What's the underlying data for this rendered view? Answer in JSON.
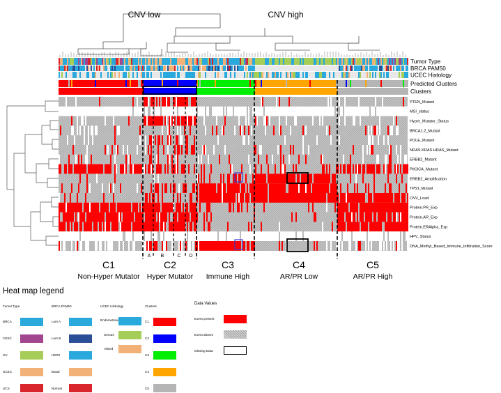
{
  "header": {
    "cnv_low": "CNV low",
    "cnv_high": "CNV high"
  },
  "tracks": [
    "Tumor Type",
    "BRCA PAM50",
    "UCEC Histology",
    "Predicted Clusters",
    "Clusters"
  ],
  "features": [
    "PTEN_Mutant",
    "MSI_status",
    "Hyper_Mutator_Status",
    "BRCA1.2_Mutant",
    "POLE_Mutant",
    "NRAS.KRAS.HRAS_Mutant",
    "ERBB2_Mutant",
    "PIK3CA_Mutant",
    "ERBB2_Amplification",
    "TP53_Mutant",
    "CNV_Load",
    "Protein.PR_Exp",
    "Protein.AR_Exp",
    "Protein.ERAlpha_Exp",
    "HPV_Status",
    "DNA_Methyl_Based_Immune_Infiltration_Score"
  ],
  "subclusters": [
    "A",
    "B",
    "C",
    "D"
  ],
  "clusters": [
    {
      "id": "C1",
      "desc": "Non-Hyper Mutator"
    },
    {
      "id": "C2",
      "desc": "Hyper Mutator"
    },
    {
      "id": "C3",
      "desc": "Immune High"
    },
    {
      "id": "C4",
      "desc": "AR/PR Low"
    },
    {
      "id": "C5",
      "desc": "AR/PR High"
    }
  ],
  "legend": {
    "title": "Heat map legend",
    "tumor_type": {
      "title": "Tumor Type",
      "items": [
        {
          "label": "BRCA",
          "color": "#29a9dc"
        },
        {
          "label": "CESC",
          "color": "#a2468f"
        },
        {
          "label": "OV",
          "color": "#a6cd57"
        },
        {
          "label": "UCEC",
          "color": "#f2b277"
        },
        {
          "label": "UCS",
          "color": "#d9262d"
        }
      ]
    },
    "pam50": {
      "title": "BRCA PAM50",
      "items": [
        {
          "label": "Lum A",
          "color": "#29a9dc"
        },
        {
          "label": "Lum B",
          "color": "#2b4f97"
        },
        {
          "label": "HER2",
          "color": "#29a9dc"
        },
        {
          "label": "Basal",
          "color": "#f2b277"
        },
        {
          "label": "Normal",
          "color": "#d9262d"
        }
      ]
    },
    "ucec": {
      "title": "UCEC Histology",
      "items": [
        {
          "label": "Endometrioid",
          "color": "#29a9dc"
        },
        {
          "label": "Serous",
          "color": "#a6cd57"
        },
        {
          "label": "Mixed",
          "color": "#f2b277"
        }
      ]
    },
    "clusters": {
      "title": "Clusters",
      "items": [
        {
          "label": "C1",
          "color": "#ff0000"
        },
        {
          "label": "C2",
          "color": "#0000ff"
        },
        {
          "label": "C3",
          "color": "#00ee00"
        },
        {
          "label": "C4",
          "color": "#ffa500"
        },
        {
          "label": "C5",
          "color": "#b5b5b5"
        }
      ]
    },
    "values": {
      "title": "Data Values",
      "items": [
        {
          "label": "Event present",
          "color": "#ff0000"
        },
        {
          "label": "Event absent",
          "color": "#b5b5b5"
        },
        {
          "label": "Missing Data",
          "color": "#ffffff"
        }
      ]
    }
  }
}
